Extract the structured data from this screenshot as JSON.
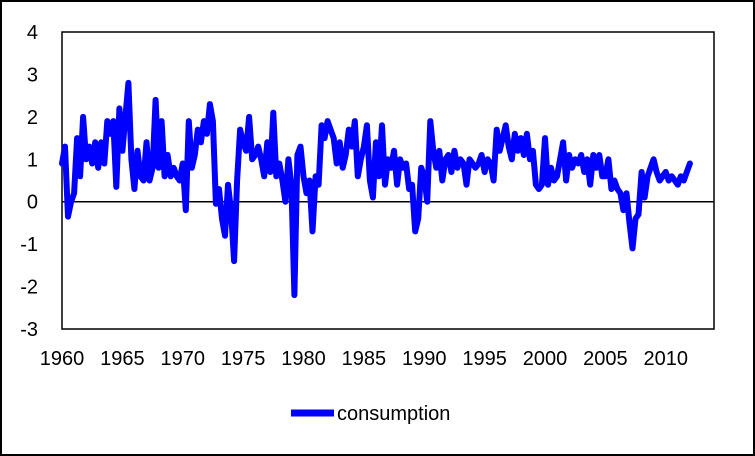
{
  "chart_data": {
    "type": "line",
    "title": "",
    "xlabel": "",
    "ylabel": "",
    "xlim": [
      1960,
      2014
    ],
    "ylim": [
      -3,
      4
    ],
    "y_ticks": [
      "4",
      "3",
      "2",
      "1",
      "0",
      "-1",
      "-2",
      "-3"
    ],
    "x_ticks": [
      "1960",
      "1965",
      "1970",
      "1975",
      "1980",
      "1985",
      "1990",
      "1995",
      "2000",
      "2005",
      "2010"
    ],
    "grid": false,
    "legend": "bottom-center",
    "series": [
      {
        "name": "consumption",
        "color": "#0000FF",
        "points": [
          [
            1960.0,
            0.9
          ],
          [
            1960.25,
            1.3
          ],
          [
            1960.5,
            -0.35
          ],
          [
            1960.75,
            0.0
          ],
          [
            1961.0,
            0.2
          ],
          [
            1961.25,
            1.5
          ],
          [
            1961.5,
            0.6
          ],
          [
            1961.75,
            2.0
          ],
          [
            1962.0,
            1.0
          ],
          [
            1962.25,
            1.3
          ],
          [
            1962.5,
            0.9
          ],
          [
            1962.75,
            1.4
          ],
          [
            1963.0,
            0.8
          ],
          [
            1963.25,
            1.4
          ],
          [
            1963.5,
            0.9
          ],
          [
            1963.75,
            1.9
          ],
          [
            1964.0,
            1.6
          ],
          [
            1964.25,
            1.9
          ],
          [
            1964.5,
            0.35
          ],
          [
            1964.75,
            2.2
          ],
          [
            1965.0,
            1.2
          ],
          [
            1965.25,
            2.0
          ],
          [
            1965.5,
            2.8
          ],
          [
            1965.75,
            1.0
          ],
          [
            1966.0,
            0.3
          ],
          [
            1966.25,
            1.2
          ],
          [
            1966.5,
            0.6
          ],
          [
            1966.75,
            0.5
          ],
          [
            1967.0,
            1.4
          ],
          [
            1967.25,
            0.5
          ],
          [
            1967.5,
            0.8
          ],
          [
            1967.75,
            2.4
          ],
          [
            1968.0,
            0.8
          ],
          [
            1968.25,
            1.9
          ],
          [
            1968.5,
            0.6
          ],
          [
            1968.75,
            1.1
          ],
          [
            1969.0,
            0.6
          ],
          [
            1969.25,
            0.8
          ],
          [
            1969.5,
            0.6
          ],
          [
            1969.75,
            0.5
          ],
          [
            1970.0,
            0.9
          ],
          [
            1970.25,
            -0.2
          ],
          [
            1970.5,
            1.9
          ],
          [
            1970.75,
            0.8
          ],
          [
            1971.0,
            1.1
          ],
          [
            1971.25,
            1.7
          ],
          [
            1971.5,
            1.4
          ],
          [
            1971.75,
            1.9
          ],
          [
            1972.0,
            1.6
          ],
          [
            1972.25,
            2.3
          ],
          [
            1972.5,
            1.9
          ],
          [
            1972.75,
            -0.05
          ],
          [
            1973.0,
            0.3
          ],
          [
            1973.25,
            -0.4
          ],
          [
            1973.5,
            -0.8
          ],
          [
            1973.75,
            0.4
          ],
          [
            1974.0,
            -0.2
          ],
          [
            1974.25,
            -1.4
          ],
          [
            1974.5,
            0.5
          ],
          [
            1974.75,
            1.7
          ],
          [
            1975.0,
            1.4
          ],
          [
            1975.25,
            1.2
          ],
          [
            1975.5,
            2.0
          ],
          [
            1975.75,
            1.0
          ],
          [
            1976.0,
            1.1
          ],
          [
            1976.25,
            1.3
          ],
          [
            1976.5,
            1.0
          ],
          [
            1976.75,
            0.6
          ],
          [
            1977.0,
            1.4
          ],
          [
            1977.25,
            0.7
          ],
          [
            1977.5,
            2.1
          ],
          [
            1977.75,
            0.6
          ],
          [
            1978.0,
            0.9
          ],
          [
            1978.25,
            0.5
          ],
          [
            1978.5,
            0.0
          ],
          [
            1978.75,
            1.0
          ],
          [
            1979.0,
            0.4
          ],
          [
            1979.25,
            -2.2
          ],
          [
            1979.5,
            1.1
          ],
          [
            1979.75,
            1.3
          ],
          [
            1980.0,
            0.6
          ],
          [
            1980.25,
            0.2
          ],
          [
            1980.5,
            0.5
          ],
          [
            1980.75,
            -0.7
          ],
          [
            1981.0,
            0.6
          ],
          [
            1981.25,
            0.4
          ],
          [
            1981.5,
            1.8
          ],
          [
            1981.75,
            1.5
          ],
          [
            1982.0,
            1.9
          ],
          [
            1982.25,
            1.7
          ],
          [
            1982.5,
            1.5
          ],
          [
            1982.75,
            0.9
          ],
          [
            1983.0,
            1.4
          ],
          [
            1983.25,
            0.8
          ],
          [
            1983.5,
            1.1
          ],
          [
            1983.75,
            1.7
          ],
          [
            1984.0,
            1.3
          ],
          [
            1984.25,
            1.9
          ],
          [
            1984.5,
            0.6
          ],
          [
            1984.75,
            1.0
          ],
          [
            1985.0,
            1.3
          ],
          [
            1985.25,
            1.8
          ],
          [
            1985.5,
            0.5
          ],
          [
            1985.75,
            0.1
          ],
          [
            1986.0,
            1.4
          ],
          [
            1986.25,
            0.6
          ],
          [
            1986.5,
            1.8
          ],
          [
            1986.75,
            0.4
          ],
          [
            1987.0,
            1.0
          ],
          [
            1987.25,
            0.8
          ],
          [
            1987.5,
            1.2
          ],
          [
            1987.75,
            0.4
          ],
          [
            1988.0,
            1.0
          ],
          [
            1988.25,
            0.8
          ],
          [
            1988.5,
            0.9
          ],
          [
            1988.75,
            0.3
          ],
          [
            1989.0,
            0.4
          ],
          [
            1989.25,
            -0.7
          ],
          [
            1989.5,
            -0.4
          ],
          [
            1989.75,
            0.8
          ],
          [
            1990.0,
            0.6
          ],
          [
            1990.25,
            0.0
          ],
          [
            1990.5,
            1.9
          ],
          [
            1990.75,
            1.2
          ],
          [
            1991.0,
            0.8
          ],
          [
            1991.25,
            1.2
          ],
          [
            1991.5,
            0.5
          ],
          [
            1991.75,
            1.0
          ],
          [
            1992.0,
            1.1
          ],
          [
            1992.25,
            0.7
          ],
          [
            1992.5,
            1.2
          ],
          [
            1992.75,
            0.8
          ],
          [
            1993.0,
            1.0
          ],
          [
            1993.25,
            0.9
          ],
          [
            1993.5,
            0.4
          ],
          [
            1993.75,
            1.0
          ],
          [
            1994.0,
            0.9
          ],
          [
            1994.25,
            0.8
          ],
          [
            1994.5,
            0.9
          ],
          [
            1994.75,
            1.1
          ],
          [
            1995.0,
            0.7
          ],
          [
            1995.25,
            1.0
          ],
          [
            1995.5,
            0.9
          ],
          [
            1995.75,
            0.5
          ],
          [
            1996.0,
            1.7
          ],
          [
            1996.25,
            1.2
          ],
          [
            1996.5,
            1.5
          ],
          [
            1996.75,
            1.8
          ],
          [
            1997.0,
            1.3
          ],
          [
            1997.25,
            1.0
          ],
          [
            1997.5,
            1.6
          ],
          [
            1997.75,
            1.2
          ],
          [
            1998.0,
            1.5
          ],
          [
            1998.25,
            1.1
          ],
          [
            1998.5,
            1.6
          ],
          [
            1998.75,
            1.0
          ],
          [
            1999.0,
            1.2
          ],
          [
            1999.25,
            0.4
          ],
          [
            1999.5,
            0.3
          ],
          [
            1999.75,
            0.4
          ],
          [
            2000.0,
            1.5
          ],
          [
            2000.25,
            0.4
          ],
          [
            2000.5,
            0.8
          ],
          [
            2000.75,
            0.5
          ],
          [
            2001.0,
            0.6
          ],
          [
            2001.25,
            1.0
          ],
          [
            2001.5,
            1.4
          ],
          [
            2001.75,
            0.5
          ],
          [
            2002.0,
            1.1
          ],
          [
            2002.25,
            0.8
          ],
          [
            2002.5,
            1.0
          ],
          [
            2002.75,
            0.9
          ],
          [
            2003.0,
            1.1
          ],
          [
            2003.25,
            0.7
          ],
          [
            2003.5,
            1.0
          ],
          [
            2003.75,
            0.4
          ],
          [
            2004.0,
            1.1
          ],
          [
            2004.25,
            0.8
          ],
          [
            2004.5,
            1.1
          ],
          [
            2004.75,
            0.6
          ],
          [
            2005.0,
            0.6
          ],
          [
            2005.25,
            1.0
          ],
          [
            2005.5,
            0.3
          ],
          [
            2005.75,
            0.5
          ],
          [
            2006.0,
            0.3
          ],
          [
            2006.25,
            0.2
          ],
          [
            2006.5,
            -0.2
          ],
          [
            2006.75,
            0.2
          ],
          [
            2007.0,
            -0.5
          ],
          [
            2007.25,
            -1.1
          ],
          [
            2007.5,
            -0.4
          ],
          [
            2007.75,
            -0.3
          ],
          [
            2008.0,
            0.7
          ],
          [
            2008.25,
            0.1
          ],
          [
            2008.5,
            0.6
          ],
          [
            2008.75,
            0.8
          ],
          [
            2009.0,
            1.0
          ],
          [
            2009.25,
            0.7
          ],
          [
            2009.5,
            0.5
          ],
          [
            2009.75,
            0.6
          ],
          [
            2010.0,
            0.7
          ],
          [
            2010.25,
            0.5
          ],
          [
            2010.5,
            0.6
          ],
          [
            2010.75,
            0.5
          ],
          [
            2011.0,
            0.4
          ],
          [
            2011.25,
            0.6
          ],
          [
            2011.5,
            0.5
          ],
          [
            2011.75,
            0.7
          ],
          [
            2012.0,
            0.9
          ]
        ]
      }
    ]
  }
}
